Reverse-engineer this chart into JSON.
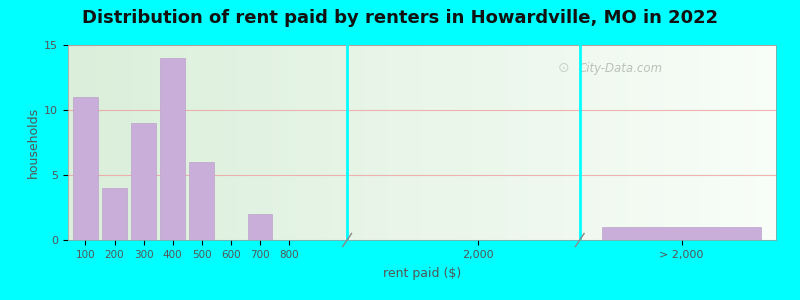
{
  "title": "Distribution of rent paid by renters in Howardville, MO in 2022",
  "xlabel": "rent paid ($)",
  "ylabel": "households",
  "background_color": "#00FFFF",
  "bar_color": "#c8aed8",
  "bar_edge_color": "#b898c8",
  "bar_categories": [
    "100",
    "200",
    "300",
    "400",
    "500",
    "600",
    "700",
    "800"
  ],
  "bar_values": [
    11,
    4,
    9,
    14,
    6,
    0,
    2,
    0
  ],
  "special_category": "> 2,000",
  "special_value": 1,
  "mid_category": "2,000",
  "mid_value": 0,
  "ylim": [
    0,
    15
  ],
  "yticks": [
    0,
    5,
    10,
    15
  ],
  "title_fontsize": 13,
  "axis_label_fontsize": 9,
  "tick_fontsize": 8,
  "watermark_text": "City-Data.com",
  "watermark_color": "#b0b8b0",
  "grid_color": "#f0a0a0",
  "plot_bg_gradient_left": "#daeeda",
  "plot_bg_gradient_right": "#f4faf4"
}
